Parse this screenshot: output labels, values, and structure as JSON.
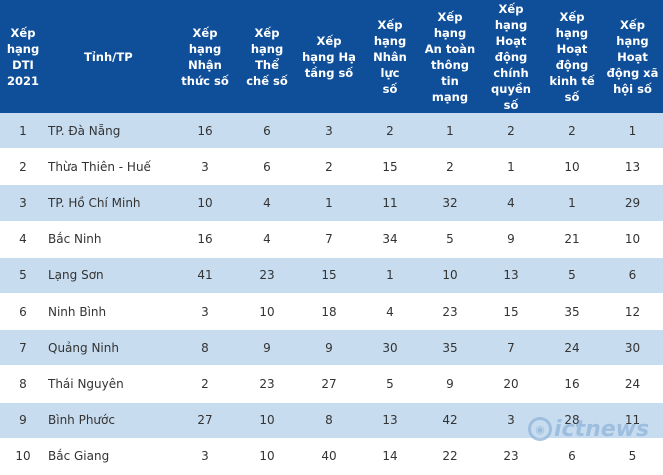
{
  "headers": [
    "Xếp\nhạng\nDTI\n2021",
    "Tỉnh/TP",
    "Xếp\nhạng\nNhận\nthức số",
    "Xếp\nhạng Thể\nchế số",
    "Xếp\nhạng Hạ\ntầng số",
    "Xếp\nhạng\nNhân lực\nsố",
    "Xếp\nhạng\nAn toàn\nthông tin\nmạng",
    "Xếp\nhạng\nHoạt\nđộng\nchính\nquyền số",
    "Xếp\nhạng\nHoạt\nđộng\nkinh tế\nsố",
    "Xếp\nhạng\nHoạt\nđộng xã\nhội số"
  ],
  "rows": [
    [
      "1",
      "TP. Đà Nẵng",
      "16",
      "6",
      "3",
      "2",
      "1",
      "2",
      "2",
      "1"
    ],
    [
      "2",
      "Thừa Thiên - Huế",
      "3",
      "6",
      "2",
      "15",
      "2",
      "1",
      "10",
      "13"
    ],
    [
      "3",
      "TP. Hồ Chí Minh",
      "10",
      "4",
      "1",
      "11",
      "32",
      "4",
      "1",
      "29"
    ],
    [
      "4",
      "Bắc Ninh",
      "16",
      "4",
      "7",
      "34",
      "5",
      "9",
      "21",
      "10"
    ],
    [
      "5",
      "Lạng Sơn",
      "41",
      "23",
      "15",
      "1",
      "10",
      "13",
      "5",
      "6"
    ],
    [
      "6",
      "Ninh Bình",
      "3",
      "10",
      "18",
      "4",
      "23",
      "15",
      "35",
      "12"
    ],
    [
      "7",
      "Quảng Ninh",
      "8",
      "9",
      "9",
      "30",
      "35",
      "7",
      "24",
      "30"
    ],
    [
      "8",
      "Thái Nguyên",
      "2",
      "23",
      "27",
      "5",
      "9",
      "20",
      "16",
      "24"
    ],
    [
      "9",
      "Bình Phước",
      "27",
      "10",
      "8",
      "13",
      "42",
      "3",
      "28",
      "11"
    ],
    [
      "10",
      "Bắc Giang",
      "3",
      "10",
      "40",
      "14",
      "22",
      "23",
      "6",
      "5"
    ]
  ],
  "watermark": {
    "text": "ictnews",
    "icon": "ictnews-logo-icon"
  },
  "colors": {
    "header_bg": "#0f4f9a",
    "stripe_bg": "#c8dcef"
  }
}
